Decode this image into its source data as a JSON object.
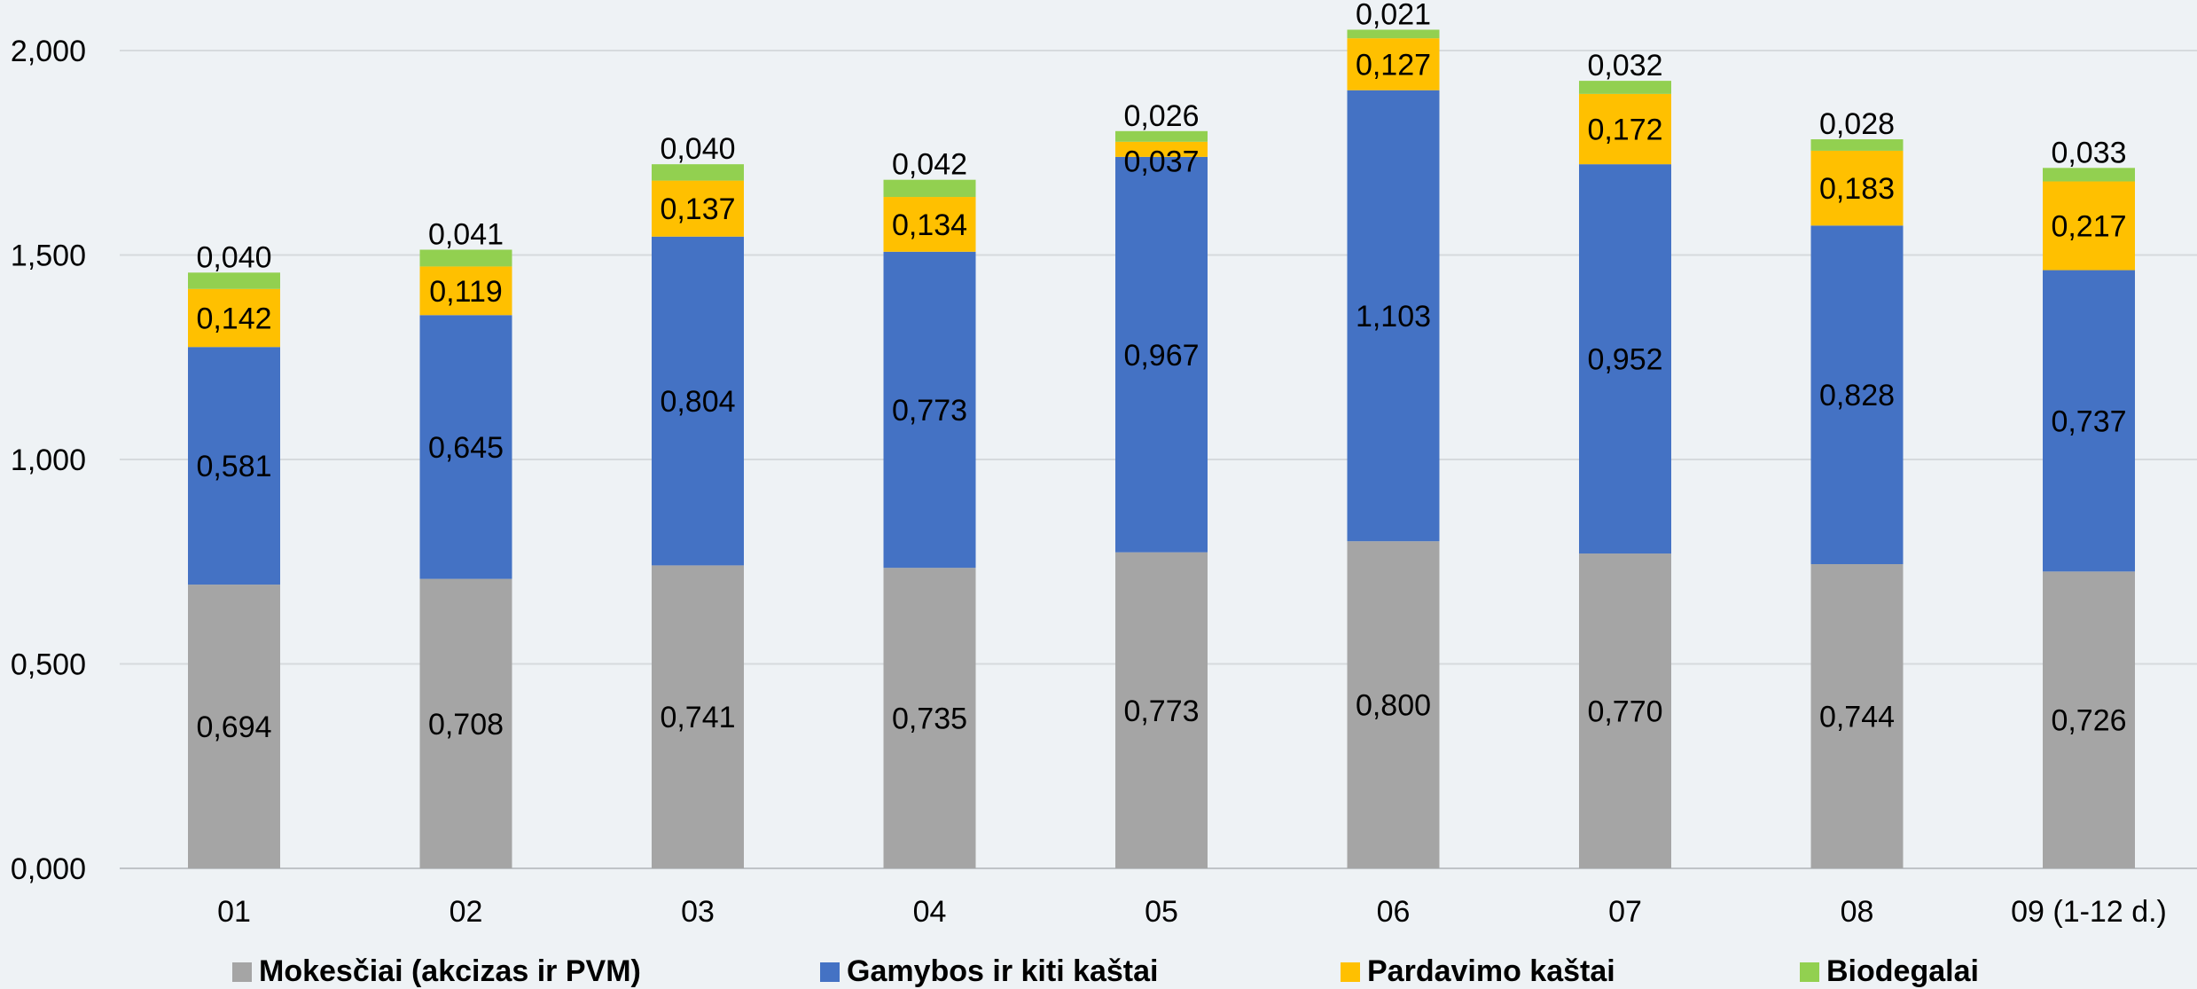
{
  "chart_data": {
    "type": "bar",
    "stacked": true,
    "categories": [
      "01",
      "02",
      "03",
      "04",
      "05",
      "06",
      "07",
      "08",
      "09 (1-12 d.)"
    ],
    "series": [
      {
        "name": "Mokesčiai (akcizas ir PVM)",
        "color": "#a5a5a5",
        "values": [
          0.694,
          0.708,
          0.741,
          0.735,
          0.773,
          0.8,
          0.77,
          0.744,
          0.726
        ],
        "labels": [
          "0,694",
          "0,708",
          "0,741",
          "0,735",
          "0,773",
          "0,800",
          "0,770",
          "0,744",
          "0,726"
        ]
      },
      {
        "name": "Gamybos ir kiti kaštai",
        "color": "#4472c4",
        "values": [
          0.581,
          0.645,
          0.804,
          0.773,
          0.967,
          1.103,
          0.952,
          0.828,
          0.737
        ],
        "labels": [
          "0,581",
          "0,645",
          "0,804",
          "0,773",
          "0,967",
          "1,103",
          "0,952",
          "0,828",
          "0,737"
        ]
      },
      {
        "name": "Pardavimo kaštai",
        "color": "#ffc000",
        "values": [
          0.142,
          0.119,
          0.137,
          0.134,
          0.037,
          0.127,
          0.172,
          0.183,
          0.217
        ],
        "labels": [
          "0,142",
          "0,119",
          "0,137",
          "0,134",
          "0,037",
          "0,127",
          "0,172",
          "0,183",
          "0,217"
        ]
      },
      {
        "name": "Biodegalai",
        "color": "#92d050",
        "values": [
          0.04,
          0.041,
          0.04,
          0.042,
          0.026,
          0.021,
          0.032,
          0.028,
          0.033
        ],
        "labels": [
          "0,040",
          "0,041",
          "0,040",
          "0,042",
          "0,026",
          "0,021",
          "0,032",
          "0,028",
          "0,033"
        ]
      }
    ],
    "ylim": [
      0,
      2.0
    ],
    "yticks": [
      0,
      0.5,
      1.0,
      1.5,
      2.0
    ],
    "ytick_labels": [
      "0,000",
      "0,500",
      "1,000",
      "1,500",
      "2,000"
    ],
    "grid": true,
    "legend_position": "bottom",
    "title": "",
    "xlabel": "",
    "ylabel": ""
  }
}
